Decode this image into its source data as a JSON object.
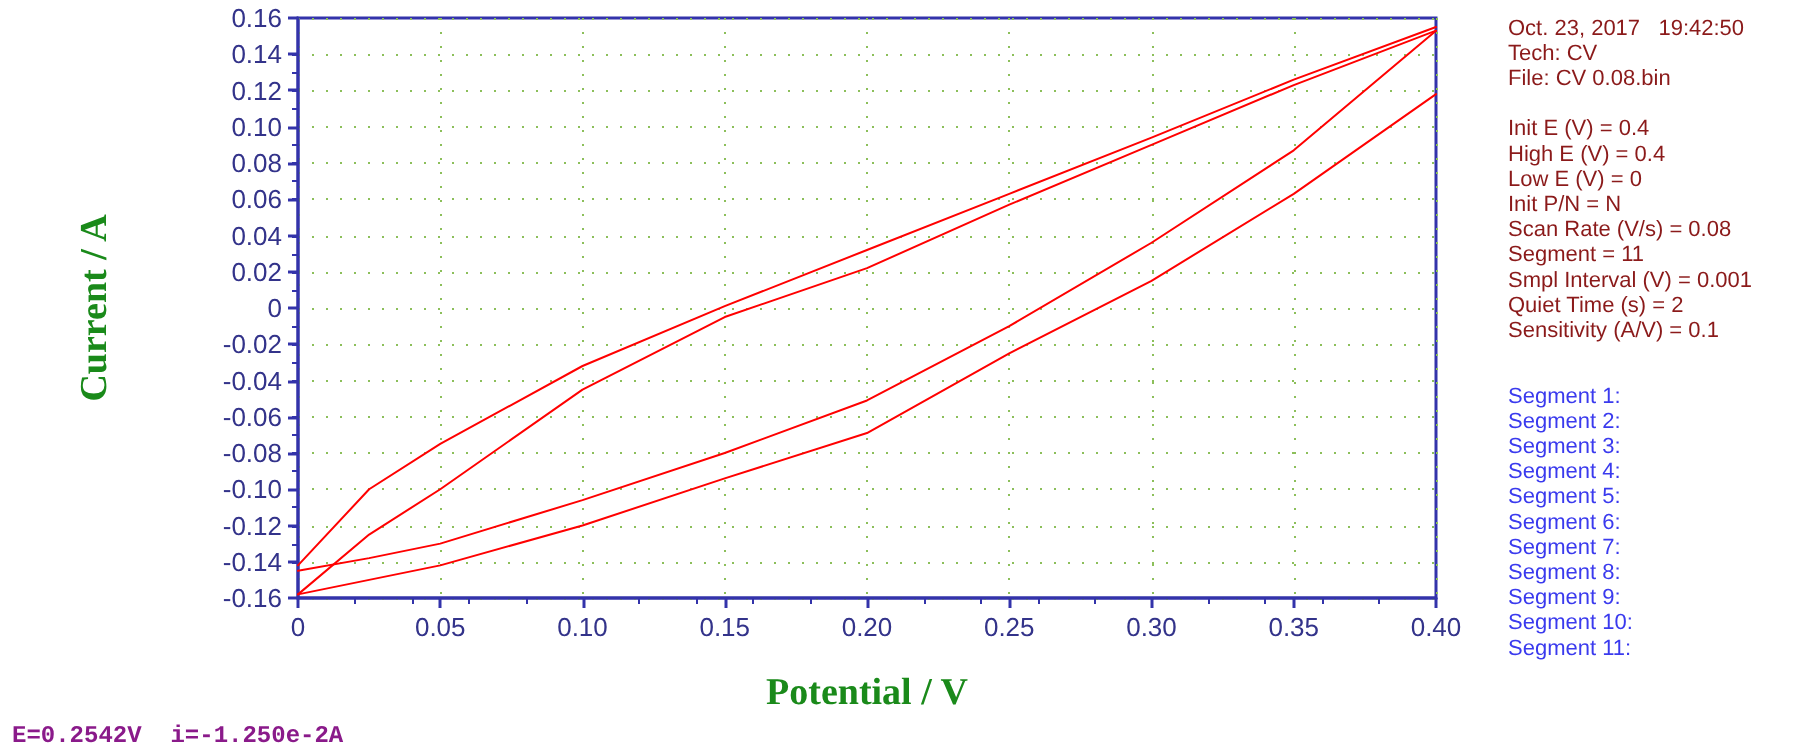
{
  "chart_data": {
    "type": "line",
    "xlabel": "Potential / V",
    "ylabel": "Current / A",
    "xlim": [
      0,
      0.4
    ],
    "ylim": [
      -0.16,
      0.16
    ],
    "xticks": [
      0,
      0.05,
      {
        "value": 0.1,
        "label": "0.10"
      },
      0.15,
      {
        "value": 0.2,
        "label": "0.20"
      },
      0.25,
      {
        "value": 0.3,
        "label": "0.30"
      },
      0.35,
      {
        "value": 0.4,
        "label": "0.40"
      }
    ],
    "yticks": [
      -0.16,
      -0.14,
      -0.12,
      {
        "value": -0.1,
        "label": "-0.10"
      },
      -0.08,
      -0.06,
      -0.04,
      -0.02,
      0,
      0.02,
      0.04,
      0.06,
      0.08,
      {
        "value": 0.1,
        "label": "0.10"
      },
      0.12,
      0.14,
      0.16
    ],
    "grid": true,
    "marker": "none",
    "line_style": "solid",
    "series": [
      {
        "color": "#ff0000",
        "x": [
          0,
          0.025,
          0.05,
          0.1,
          0.15,
          0.2,
          0.25,
          0.3,
          0.35,
          0.4
        ],
        "values": [
          -0.142,
          -0.1,
          -0.075,
          -0.032,
          0.001,
          0.032,
          0.063,
          0.094,
          0.126,
          0.155
        ]
      },
      {
        "color": "#ff0000",
        "x": [
          0,
          0.025,
          0.05,
          0.1,
          0.15,
          0.2,
          0.25,
          0.3,
          0.35,
          0.4
        ],
        "values": [
          -0.145,
          -0.138,
          -0.13,
          -0.106,
          -0.08,
          -0.051,
          -0.01,
          0.036,
          0.087,
          0.153
        ]
      },
      {
        "color": "#ff0000",
        "x": [
          0,
          0.025,
          0.05,
          0.1,
          0.15,
          0.2,
          0.25,
          0.3,
          0.35,
          0.4
        ],
        "values": [
          -0.158,
          -0.125,
          -0.1,
          -0.045,
          -0.005,
          0.022,
          0.057,
          0.09,
          0.123,
          0.153
        ]
      },
      {
        "color": "#ff0000",
        "x": [
          0,
          0.025,
          0.05,
          0.1,
          0.15,
          0.2,
          0.25,
          0.3,
          0.35,
          0.4
        ],
        "values": [
          -0.158,
          -0.15,
          -0.142,
          -0.12,
          -0.094,
          -0.069,
          -0.025,
          0.015,
          0.063,
          0.118
        ]
      }
    ],
    "annotations": [
      "Oct. 23, 2017   19:42:50\nTech: CV\nFile: CV 0.08.bin\n\nInit E (V) = 0.4\nHigh E (V) = 0.4\nLow E (V) = 0\nInit P/N = N\nScan Rate (V/s) = 0.08\nSegment = 11\nSmpl Interval (V) = 0.001\nQuiet Time (s) = 2\nSensitivity (A/V) = 0.1",
      "Segment 1:\nSegment 2:\nSegment 3:\nSegment 4:\nSegment 5:\nSegment 6:\nSegment 7:\nSegment 8:\nSegment 9:\nSegment 10:\nSegment 11:",
      "E=0.2542V  i=-1.250e-2A"
    ]
  }
}
